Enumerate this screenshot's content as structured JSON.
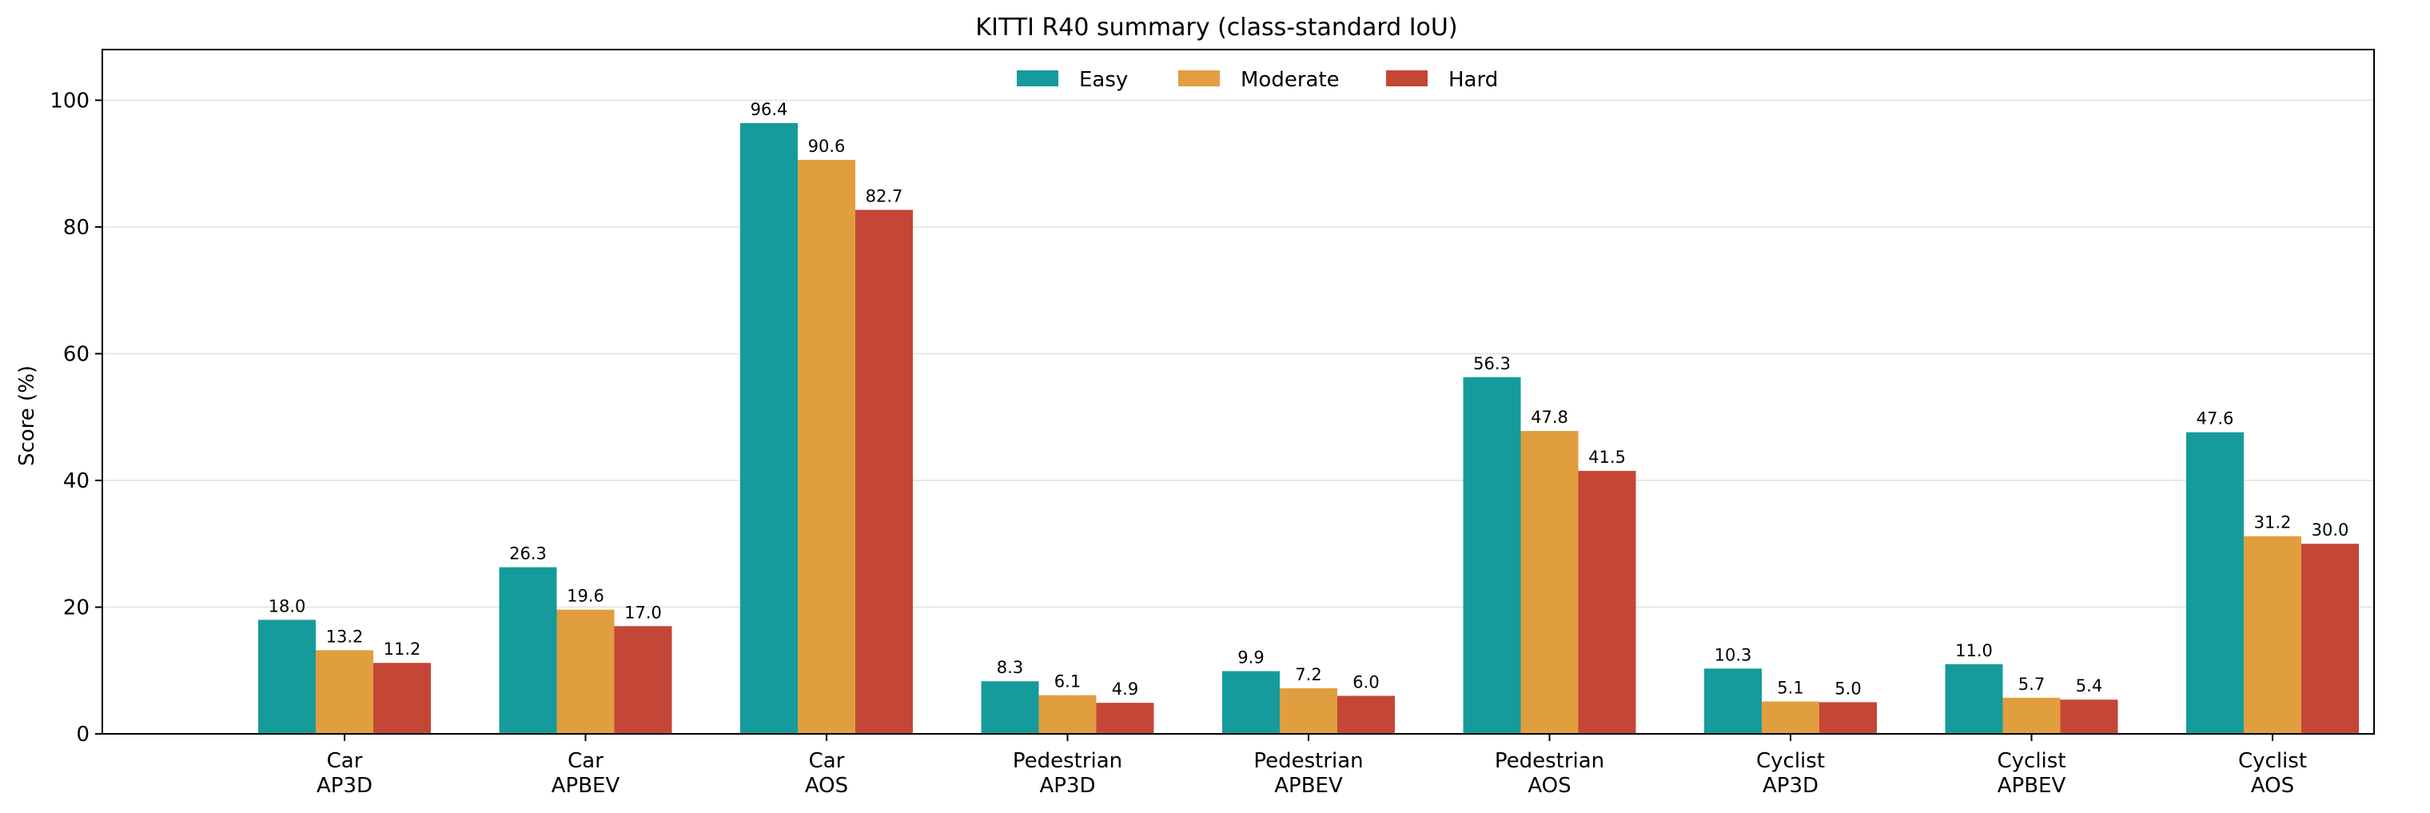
{
  "chart_data": {
    "type": "bar",
    "title": "KITTI R40 summary (class-standard IoU)",
    "xlabel": "",
    "ylabel": "Score (%)",
    "ylim": [
      0,
      108
    ],
    "yticks": [
      0,
      20,
      40,
      60,
      80,
      100
    ],
    "grid": "horizontal",
    "legend_position": "top-center",
    "categories": [
      [
        "Car",
        "AP3D"
      ],
      [
        "Car",
        "APBEV"
      ],
      [
        "Car",
        "AOS"
      ],
      [
        "Pedestrian",
        "AP3D"
      ],
      [
        "Pedestrian",
        "APBEV"
      ],
      [
        "Pedestrian",
        "AOS"
      ],
      [
        "Cyclist",
        "AP3D"
      ],
      [
        "Cyclist",
        "APBEV"
      ],
      [
        "Cyclist",
        "AOS"
      ]
    ],
    "series": [
      {
        "name": "Easy",
        "color": "#159b9b",
        "values": [
          18.0,
          26.3,
          96.4,
          8.3,
          9.9,
          56.3,
          10.3,
          11.0,
          47.6
        ]
      },
      {
        "name": "Moderate",
        "color": "#e09e3f",
        "values": [
          13.2,
          19.6,
          90.6,
          6.1,
          7.2,
          47.8,
          5.1,
          5.7,
          31.2
        ]
      },
      {
        "name": "Hard",
        "color": "#c44637",
        "values": [
          11.2,
          17.0,
          82.7,
          4.9,
          6.0,
          41.5,
          5.0,
          5.4,
          30.0
        ]
      }
    ]
  }
}
